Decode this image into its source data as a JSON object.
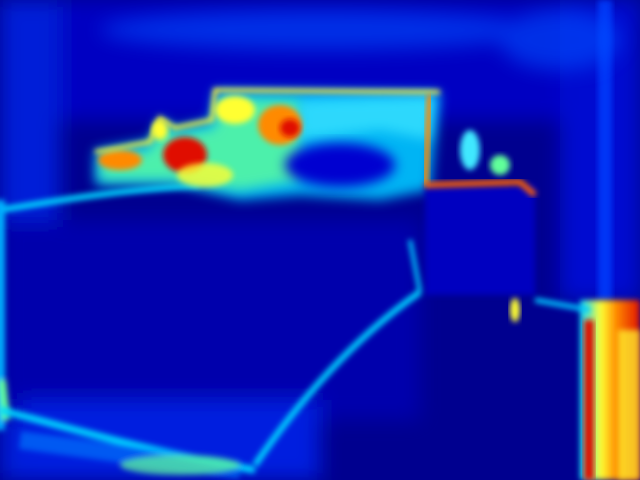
{
  "image": {
    "kind": "heatmap-style edge response visualization (jet colormap)",
    "colormap": "jet",
    "colors": {
      "background_low": "#00008f",
      "deep_blue": "#0000c8",
      "blue": "#0040ff",
      "cyan": "#00d8ff",
      "green": "#60ff9a",
      "yellow": "#ffff30",
      "orange": "#ff8a00",
      "red": "#e01000",
      "dark_red": "#8a0000"
    },
    "regions": [
      "left-wall-edge",
      "upper-furniture-hot-region",
      "center-cabinet",
      "right-wall-hot-edge",
      "floor-diagonal-edge",
      "bottom-left-edge"
    ]
  }
}
